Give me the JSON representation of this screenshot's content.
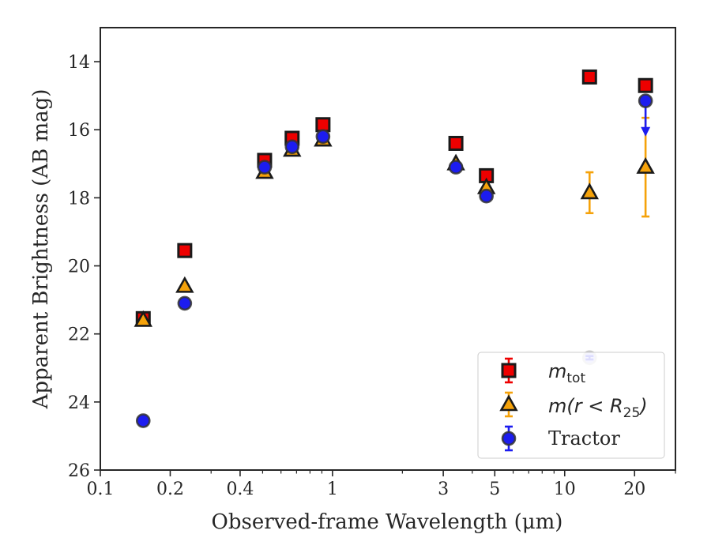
{
  "chart_data": {
    "type": "scatter",
    "xlabel": "Observed-frame Wavelength (μm)",
    "ylabel": "Apparent Brightness (AB mag)",
    "x_scale": "log",
    "xlim": [
      0.1,
      30
    ],
    "ylim": [
      26,
      13
    ],
    "y_inverted": true,
    "x_ticks": [
      0.1,
      0.2,
      0.4,
      1,
      3,
      5,
      10,
      20
    ],
    "x_tick_labels": [
      "0.1",
      "0.2",
      "0.4",
      "1",
      "3",
      "5",
      "10",
      "20"
    ],
    "y_ticks": [
      14,
      16,
      18,
      20,
      22,
      24,
      26
    ],
    "y_tick_labels": [
      "14",
      "16",
      "18",
      "20",
      "22",
      "24",
      "26"
    ],
    "grid": false,
    "legend_position": "lower-right",
    "series": [
      {
        "name": "m_tot",
        "legend_label": "m",
        "legend_subscript": "tot",
        "marker": "square",
        "face_color": "#ee0000",
        "edge_color": "#1a1a1a",
        "error_color": "#ee0000",
        "points": [
          {
            "x": 0.153,
            "y": 21.55,
            "yerr": 0.1
          },
          {
            "x": 0.231,
            "y": 19.55,
            "yerr": 0.05
          },
          {
            "x": 0.51,
            "y": 16.9,
            "yerr": 0.05
          },
          {
            "x": 0.67,
            "y": 16.25,
            "yerr": 0.05
          },
          {
            "x": 0.91,
            "y": 15.85,
            "yerr": 0.05
          },
          {
            "x": 3.4,
            "y": 16.4,
            "yerr": 0.05
          },
          {
            "x": 4.6,
            "y": 17.35,
            "yerr": 0.05
          },
          {
            "x": 12.8,
            "y": 14.45,
            "yerr": 0.05
          },
          {
            "x": 22.3,
            "y": 14.7,
            "yerr": 0.05
          }
        ]
      },
      {
        "name": "m(r < R_25)",
        "legend_label": "m(r < R",
        "legend_subscript": "25",
        "legend_suffix": ")",
        "marker": "triangle",
        "face_color": "#f5a20a",
        "edge_color": "#1a1a1a",
        "error_color": "#f5a20a",
        "points": [
          {
            "x": 0.153,
            "y": 21.6,
            "yerr": 0.05
          },
          {
            "x": 0.231,
            "y": 20.6,
            "yerr": 0.05
          },
          {
            "x": 0.51,
            "y": 17.25,
            "yerr": 0.05
          },
          {
            "x": 0.67,
            "y": 16.6,
            "yerr": 0.05
          },
          {
            "x": 0.91,
            "y": 16.3,
            "yerr": 0.05
          },
          {
            "x": 3.4,
            "y": 17.0,
            "yerr": 0.05
          },
          {
            "x": 4.6,
            "y": 17.7,
            "yerr": 0.05
          },
          {
            "x": 12.8,
            "y": 17.85,
            "yerr": 0.6
          },
          {
            "x": 22.3,
            "y": 17.1,
            "yerr": 1.45
          }
        ]
      },
      {
        "name": "Tractor",
        "legend_label": "Tractor",
        "marker": "circle",
        "face_color": "#1c1cf0",
        "edge_color": "#333333",
        "error_color": "#1c1cf0",
        "points": [
          {
            "x": 0.153,
            "y": 24.55,
            "yerr": 0.05
          },
          {
            "x": 0.231,
            "y": 21.1,
            "yerr": 0.05
          },
          {
            "x": 0.51,
            "y": 17.1,
            "yerr": 0.05
          },
          {
            "x": 0.67,
            "y": 16.5,
            "yerr": 0.05
          },
          {
            "x": 0.91,
            "y": 16.2,
            "yerr": 0.05
          },
          {
            "x": 3.4,
            "y": 17.1,
            "yerr": 0.05
          },
          {
            "x": 4.6,
            "y": 17.95,
            "yerr": 0.05
          },
          {
            "x": 12.8,
            "y": 22.7,
            "yerr": 0.05,
            "faded": true
          },
          {
            "x": 22.3,
            "y": 15.15,
            "upper_limit_to": 16.15
          }
        ]
      }
    ]
  }
}
